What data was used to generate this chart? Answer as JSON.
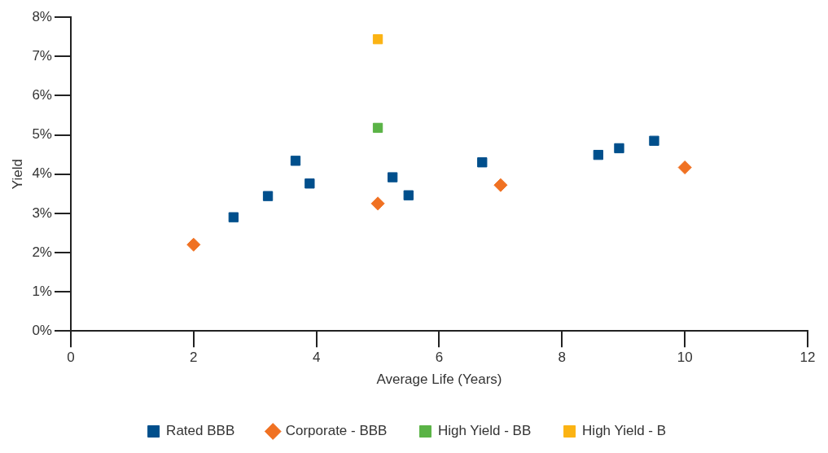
{
  "chart_data": {
    "type": "scatter",
    "xlabel": "Average Life (Years)",
    "ylabel": "Yield",
    "xlim": [
      0,
      12
    ],
    "xticks": [
      0,
      2,
      4,
      6,
      8,
      10,
      12
    ],
    "ylim": [
      0,
      8
    ],
    "yticks": [
      {
        "value": 0,
        "label": "0%"
      },
      {
        "value": 1,
        "label": "1%"
      },
      {
        "value": 2,
        "label": "2%"
      },
      {
        "value": 3,
        "label": "3%"
      },
      {
        "value": 4,
        "label": "4%"
      },
      {
        "value": 5,
        "label": "5%"
      },
      {
        "value": 6,
        "label": "6%"
      },
      {
        "value": 7,
        "label": "7%"
      },
      {
        "value": 8,
        "label": "8%"
      }
    ],
    "grid": false,
    "legend": "bottom",
    "series": [
      {
        "name": "Rated BBB",
        "color": "#004f8c",
        "marker": "square",
        "x": [
          2.65,
          3.21,
          3.66,
          3.89,
          5.24,
          5.5,
          6.7,
          8.59,
          8.93,
          9.5
        ],
        "values": [
          2.9,
          3.44,
          4.34,
          3.76,
          3.92,
          3.46,
          4.3,
          4.49,
          4.66,
          4.85
        ]
      },
      {
        "name": "Corporate - BBB",
        "color": "#f07122",
        "marker": "diamond",
        "x": [
          2,
          5,
          7,
          10
        ],
        "values": [
          2.2,
          3.25,
          3.72,
          4.17
        ]
      },
      {
        "name": "High Yield - BB",
        "color": "#5ab346",
        "marker": "square",
        "x": [
          5
        ],
        "values": [
          5.18
        ]
      },
      {
        "name": "High Yield - B",
        "color": "#fbb313",
        "marker": "square",
        "x": [
          5
        ],
        "values": [
          7.44
        ]
      }
    ]
  }
}
